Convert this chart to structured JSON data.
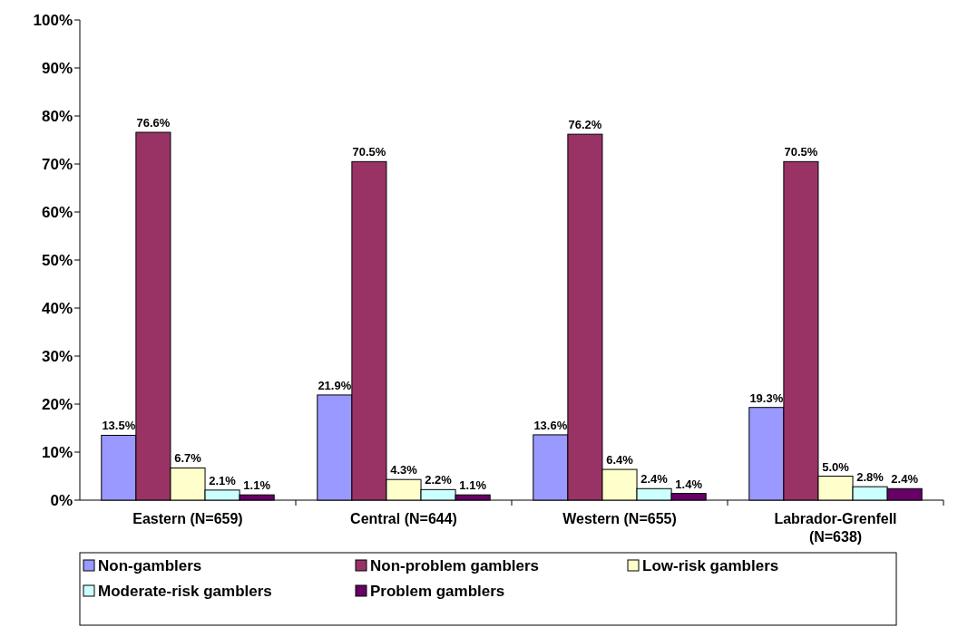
{
  "chart_data": {
    "type": "bar",
    "categories": [
      "Eastern (N=659)",
      "Central (N=644)",
      "Western (N=655)",
      "Labrador-Grenfell (N=638)"
    ],
    "series": [
      {
        "name": "Non-gamblers",
        "color": "#9999ff",
        "values": [
          13.5,
          21.9,
          13.6,
          19.3
        ],
        "value_labels": [
          "13.5%",
          "21.9%",
          "13.6%",
          "19.3%"
        ]
      },
      {
        "name": "Non-problem gamblers",
        "color": "#993366",
        "values": [
          76.6,
          70.5,
          76.2,
          70.5
        ],
        "value_labels": [
          "76.6%",
          "70.5%",
          "76.2%",
          "70.5%"
        ]
      },
      {
        "name": "Low-risk gamblers",
        "color": "#ffffcc",
        "values": [
          6.7,
          4.3,
          6.4,
          5.0
        ],
        "value_labels": [
          "6.7%",
          "4.3%",
          "6.4%",
          "5.0%"
        ]
      },
      {
        "name": "Moderate-risk gamblers",
        "color": "#ccffff",
        "values": [
          2.1,
          2.2,
          2.4,
          2.8
        ],
        "value_labels": [
          "2.1%",
          "2.2%",
          "2.4%",
          "2.8%"
        ]
      },
      {
        "name": "Problem gamblers",
        "color": "#660066",
        "values": [
          1.1,
          1.1,
          1.4,
          2.4
        ],
        "value_labels": [
          "1.1%",
          "1.1%",
          "1.4%",
          "2.4%"
        ]
      }
    ],
    "ylim": [
      0,
      100
    ],
    "yticks": [
      {
        "value": 0,
        "label": "0%"
      },
      {
        "value": 10,
        "label": "10%"
      },
      {
        "value": 20,
        "label": "20%"
      },
      {
        "value": 30,
        "label": "30%"
      },
      {
        "value": 40,
        "label": "40%"
      },
      {
        "value": 50,
        "label": "50%"
      },
      {
        "value": 60,
        "label": "60%"
      },
      {
        "value": 70,
        "label": "70%"
      },
      {
        "value": 80,
        "label": "80%"
      },
      {
        "value": 90,
        "label": "90%"
      },
      {
        "value": 100,
        "label": "100%"
      }
    ],
    "grid": false,
    "legend": "bottom"
  }
}
